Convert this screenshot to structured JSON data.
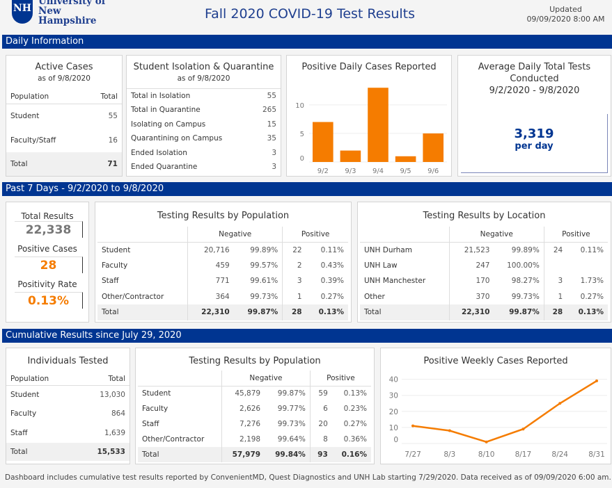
{
  "header": {
    "logo_line1": "University of",
    "logo_line2": "New Hampshire",
    "logo_mark": "NH",
    "title": "Fall 2020 COVID-19 Test Results",
    "updated_label": "Updated",
    "updated_value": "09/09/2020 8:00 AM"
  },
  "colors": {
    "brand": "#003591",
    "accent": "#f57c00"
  },
  "sections": {
    "daily": "Daily Information",
    "past7": "Past 7 Days  - 9/2/2020  to 9/8/2020",
    "cumulative": "Cumulative Results since July 29, 2020"
  },
  "active_cases": {
    "title": "Active Cases",
    "subtitle": "as of 9/8/2020",
    "headers": [
      "Population",
      "Total"
    ],
    "rows": [
      [
        "Student",
        "55"
      ],
      [
        "Faculty/Staff",
        "16"
      ]
    ],
    "total": [
      "Total",
      "71"
    ]
  },
  "isolation": {
    "title": "Student Isolation & Quarantine",
    "subtitle": "as of 9/8/2020",
    "rows": [
      [
        "Total in Isolation",
        "55"
      ],
      [
        "Total in Quarantine",
        "265"
      ],
      [
        "Isolating on Campus",
        "15"
      ],
      [
        "Quarantining on Campus",
        "35"
      ],
      [
        "Ended Isolation",
        "3"
      ],
      [
        "Ended Quarantine",
        "3"
      ]
    ]
  },
  "avg_tests": {
    "title1": "Average Daily Total Tests",
    "title2": "Conducted",
    "range": "9/2/2020 - 9/8/2020",
    "value": "3,319",
    "unit": "per day"
  },
  "kpis": {
    "total_label": "Total Results",
    "total_value": "22,338",
    "positive_label": "Positive Cases",
    "positive_value": "28",
    "rate_label": "Positivity Rate",
    "rate_value": "0.13%"
  },
  "pop7": {
    "title": "Testing Results by Population",
    "neg": "Negative",
    "pos": "Positive",
    "rows": [
      [
        "Student",
        "20,716",
        "99.89%",
        "22",
        "0.11%"
      ],
      [
        "Faculty",
        "459",
        "99.57%",
        "2",
        "0.43%"
      ],
      [
        "Staff",
        "771",
        "99.61%",
        "3",
        "0.39%"
      ],
      [
        "Other/Contractor",
        "364",
        "99.73%",
        "1",
        "0.27%"
      ]
    ],
    "total": [
      "Total",
      "22,310",
      "99.87%",
      "28",
      "0.13%"
    ]
  },
  "loc7": {
    "title": "Testing Results by Location",
    "neg": "Negative",
    "pos": "Positive",
    "rows": [
      [
        "UNH Durham",
        "21,523",
        "99.89%",
        "24",
        "0.11%"
      ],
      [
        "UNH Law",
        "247",
        "100.00%",
        "",
        ""
      ],
      [
        "UNH Manchester",
        "170",
        "98.27%",
        "3",
        "1.73%"
      ],
      [
        "Other",
        "370",
        "99.73%",
        "1",
        "0.27%"
      ]
    ],
    "total": [
      "Total",
      "22,310",
      "99.87%",
      "28",
      "0.13%"
    ]
  },
  "individuals": {
    "title": "Individuals Tested",
    "headers": [
      "Population",
      "Total"
    ],
    "rows": [
      [
        "Student",
        "13,030"
      ],
      [
        "Faculty",
        "864"
      ],
      [
        "Staff",
        "1,639"
      ]
    ],
    "total": [
      "Total",
      "15,533"
    ]
  },
  "popcum": {
    "title": "Testing Results by Population",
    "neg": "Negative",
    "pos": "Positive",
    "rows": [
      [
        "Student",
        "45,879",
        "99.87%",
        "59",
        "0.13%"
      ],
      [
        "Faculty",
        "2,626",
        "99.77%",
        "6",
        "0.23%"
      ],
      [
        "Staff",
        "7,276",
        "99.73%",
        "20",
        "0.27%"
      ],
      [
        "Other/Contractor",
        "2,198",
        "99.64%",
        "8",
        "0.36%"
      ]
    ],
    "total": [
      "Total",
      "57,979",
      "99.84%",
      "93",
      "0.16%"
    ]
  },
  "footer": "Dashboard includes cumulative test results reported by ConvenientMD, Quest Diagnostics and UNH Lab starting 7/29/2020.  Data received as of 09/09/2020 6:00 am.",
  "chart_data": [
    {
      "type": "bar",
      "title": "Positive Daily Cases Reported",
      "categories": [
        "9/2",
        "9/3",
        "9/4",
        "9/5",
        "9/6"
      ],
      "values": [
        7,
        2,
        13,
        1,
        5
      ],
      "yticks": [
        0,
        5,
        10
      ],
      "ylim": [
        0,
        14
      ],
      "color": "#f57c00",
      "grid": true
    },
    {
      "type": "line",
      "title": "Positive Weekly Cases Reported",
      "categories": [
        "7/27",
        "8/3",
        "8/10",
        "8/17",
        "8/24",
        "8/31"
      ],
      "values": [
        11,
        8,
        1,
        9,
        25,
        39
      ],
      "yticks": [
        0,
        10,
        20,
        30,
        40
      ],
      "ylim": [
        0,
        42
      ],
      "color": "#f57c00",
      "grid": true
    }
  ]
}
